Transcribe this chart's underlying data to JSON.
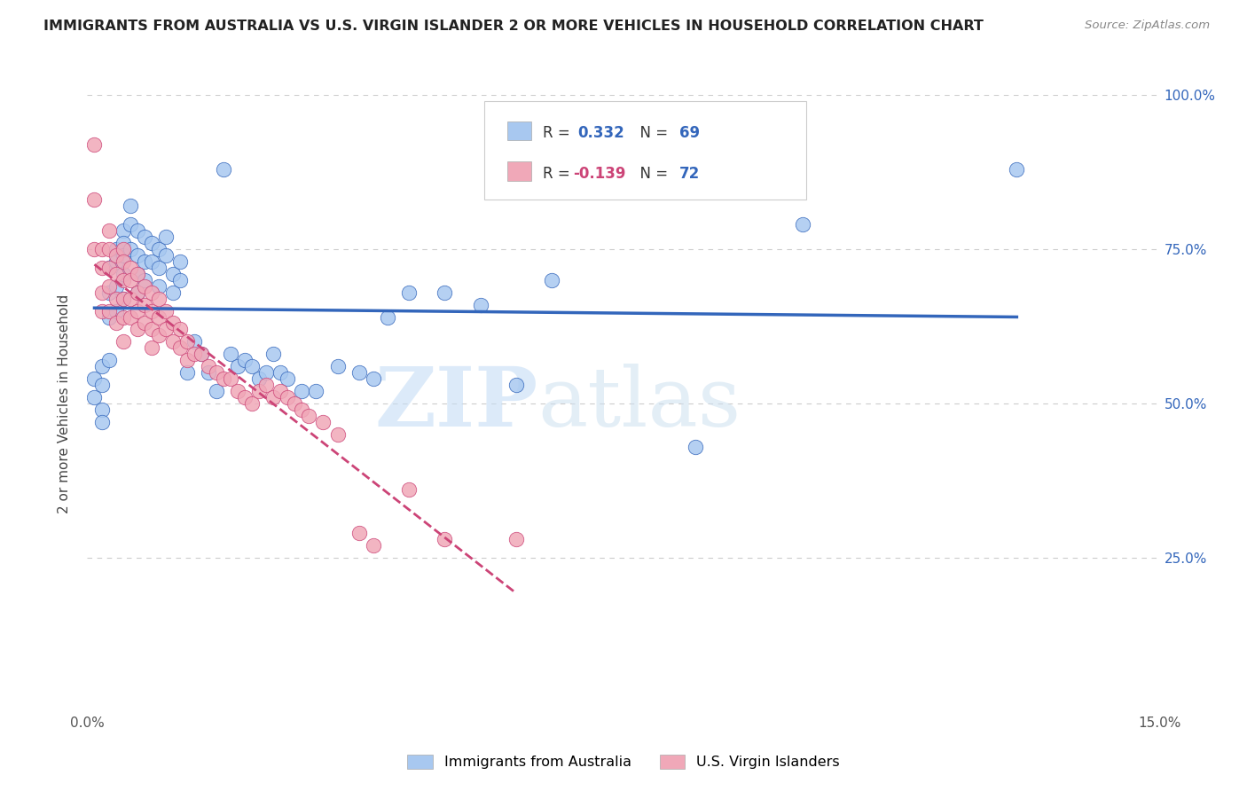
{
  "title": "IMMIGRANTS FROM AUSTRALIA VS U.S. VIRGIN ISLANDER 2 OR MORE VEHICLES IN HOUSEHOLD CORRELATION CHART",
  "source": "Source: ZipAtlas.com",
  "ylabel": "2 or more Vehicles in Household",
  "xlim": [
    0.0,
    0.15
  ],
  "ylim": [
    0.0,
    1.0
  ],
  "ytick_labels_right": [
    "100.0%",
    "75.0%",
    "50.0%",
    "25.0%"
  ],
  "yticks_right": [
    1.0,
    0.75,
    0.5,
    0.25
  ],
  "legend_label1": "Immigrants from Australia",
  "legend_label2": "U.S. Virgin Islanders",
  "R1": 0.332,
  "N1": 69,
  "R2": -0.139,
  "N2": 72,
  "color_blue": "#a8c8f0",
  "color_pink": "#f0a8b8",
  "line_blue": "#3366bb",
  "line_pink": "#cc4477",
  "watermark_zip": "ZIP",
  "watermark_atlas": "atlas",
  "blue_scatter_x": [
    0.001,
    0.001,
    0.002,
    0.002,
    0.002,
    0.002,
    0.003,
    0.003,
    0.003,
    0.003,
    0.004,
    0.004,
    0.004,
    0.004,
    0.005,
    0.005,
    0.005,
    0.005,
    0.005,
    0.006,
    0.006,
    0.006,
    0.007,
    0.007,
    0.007,
    0.007,
    0.008,
    0.008,
    0.008,
    0.009,
    0.009,
    0.01,
    0.01,
    0.01,
    0.011,
    0.011,
    0.012,
    0.012,
    0.013,
    0.013,
    0.014,
    0.015,
    0.016,
    0.017,
    0.018,
    0.019,
    0.02,
    0.021,
    0.022,
    0.023,
    0.024,
    0.025,
    0.026,
    0.027,
    0.028,
    0.03,
    0.032,
    0.035,
    0.038,
    0.04,
    0.042,
    0.045,
    0.05,
    0.055,
    0.06,
    0.065,
    0.085,
    0.1,
    0.13
  ],
  "blue_scatter_y": [
    0.54,
    0.51,
    0.56,
    0.53,
    0.49,
    0.47,
    0.72,
    0.68,
    0.64,
    0.57,
    0.75,
    0.73,
    0.69,
    0.65,
    0.78,
    0.76,
    0.74,
    0.71,
    0.67,
    0.82,
    0.79,
    0.75,
    0.78,
    0.74,
    0.71,
    0.68,
    0.77,
    0.73,
    0.7,
    0.76,
    0.73,
    0.75,
    0.72,
    0.69,
    0.77,
    0.74,
    0.71,
    0.68,
    0.73,
    0.7,
    0.55,
    0.6,
    0.58,
    0.55,
    0.52,
    0.88,
    0.58,
    0.56,
    0.57,
    0.56,
    0.54,
    0.55,
    0.58,
    0.55,
    0.54,
    0.52,
    0.52,
    0.56,
    0.55,
    0.54,
    0.64,
    0.68,
    0.68,
    0.66,
    0.53,
    0.7,
    0.43,
    0.79,
    0.88
  ],
  "pink_scatter_x": [
    0.001,
    0.001,
    0.001,
    0.002,
    0.002,
    0.002,
    0.002,
    0.003,
    0.003,
    0.003,
    0.003,
    0.003,
    0.004,
    0.004,
    0.004,
    0.004,
    0.005,
    0.005,
    0.005,
    0.005,
    0.005,
    0.005,
    0.006,
    0.006,
    0.006,
    0.006,
    0.007,
    0.007,
    0.007,
    0.007,
    0.008,
    0.008,
    0.008,
    0.009,
    0.009,
    0.009,
    0.009,
    0.01,
    0.01,
    0.01,
    0.011,
    0.011,
    0.012,
    0.012,
    0.013,
    0.013,
    0.014,
    0.014,
    0.015,
    0.016,
    0.017,
    0.018,
    0.019,
    0.02,
    0.021,
    0.022,
    0.023,
    0.024,
    0.025,
    0.026,
    0.027,
    0.028,
    0.029,
    0.03,
    0.031,
    0.033,
    0.035,
    0.038,
    0.04,
    0.045,
    0.05,
    0.06
  ],
  "pink_scatter_y": [
    0.92,
    0.83,
    0.75,
    0.75,
    0.72,
    0.68,
    0.65,
    0.78,
    0.75,
    0.72,
    0.69,
    0.65,
    0.74,
    0.71,
    0.67,
    0.63,
    0.75,
    0.73,
    0.7,
    0.67,
    0.64,
    0.6,
    0.72,
    0.7,
    0.67,
    0.64,
    0.71,
    0.68,
    0.65,
    0.62,
    0.69,
    0.66,
    0.63,
    0.68,
    0.65,
    0.62,
    0.59,
    0.67,
    0.64,
    0.61,
    0.65,
    0.62,
    0.63,
    0.6,
    0.62,
    0.59,
    0.6,
    0.57,
    0.58,
    0.58,
    0.56,
    0.55,
    0.54,
    0.54,
    0.52,
    0.51,
    0.5,
    0.52,
    0.53,
    0.51,
    0.52,
    0.51,
    0.5,
    0.49,
    0.48,
    0.47,
    0.45,
    0.29,
    0.27,
    0.36,
    0.28,
    0.28
  ]
}
